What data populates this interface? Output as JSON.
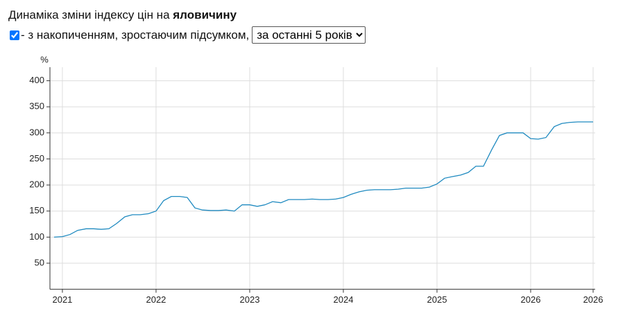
{
  "header": {
    "title_prefix": "Динаміка зміни індексу цін на",
    "title_bold": "яловичину"
  },
  "controls": {
    "cumulative_checked": true,
    "cumulative_label": "- з накопиченням, зростаючим підсумком,",
    "period": "за останні 5 років"
  },
  "chart_data": {
    "type": "line",
    "y_unit": "%",
    "x": [
      2020.911,
      2021.0,
      2021.081,
      2021.163,
      2021.252,
      2021.333,
      2021.415,
      2021.496,
      2021.578,
      2021.667,
      2021.748,
      2021.83,
      2021.919,
      2022.0,
      2022.081,
      2022.163,
      2022.252,
      2022.333,
      2022.415,
      2022.496,
      2022.585,
      2022.667,
      2022.748,
      2022.837,
      2022.919,
      2023.0,
      2023.081,
      2023.163,
      2023.244,
      2023.333,
      2023.415,
      2023.496,
      2023.585,
      2023.667,
      2023.748,
      2023.837,
      2023.919,
      2024.0,
      2024.081,
      2024.17,
      2024.252,
      2024.333,
      2024.415,
      2024.504,
      2024.585,
      2024.667,
      2024.748,
      2024.837,
      2024.919,
      2025.0,
      2025.081,
      2025.163,
      2025.252,
      2025.333,
      2025.415,
      2025.496,
      2025.585,
      2025.667,
      2025.748,
      2025.83,
      2025.919,
      2026.0,
      2026.081,
      2026.163,
      2026.252,
      2026.333,
      2026.415,
      2026.504,
      2026.585,
      2026.667
    ],
    "series": [
      {
        "color": "#1f8ac0",
        "values": [
          100,
          101,
          105,
          113,
          116,
          116,
          115,
          116,
          126,
          139,
          143,
          143,
          145,
          150,
          170,
          178,
          178,
          176,
          156,
          152,
          151,
          151,
          152,
          150,
          162,
          162,
          159,
          162,
          168,
          166,
          172,
          172,
          172,
          173,
          172,
          172,
          173,
          176,
          182,
          187,
          190,
          191,
          191,
          191,
          192,
          194,
          194,
          194,
          196,
          202,
          213,
          216,
          219,
          224,
          236,
          236,
          268,
          295,
          300,
          300,
          300,
          289,
          288,
          291,
          312,
          318,
          320,
          321,
          321,
          321
        ]
      }
    ],
    "xlim": [
      2020.867,
      2026.689
    ],
    "ylim": [
      0,
      426
    ],
    "xticks": [
      2021,
      2022,
      2023,
      2024,
      2025,
      2026,
      {
        "value": 2026.667,
        "label": "2026"
      }
    ],
    "yticks": [
      50,
      100,
      150,
      200,
      250,
      300,
      350,
      400
    ],
    "grid": true
  }
}
